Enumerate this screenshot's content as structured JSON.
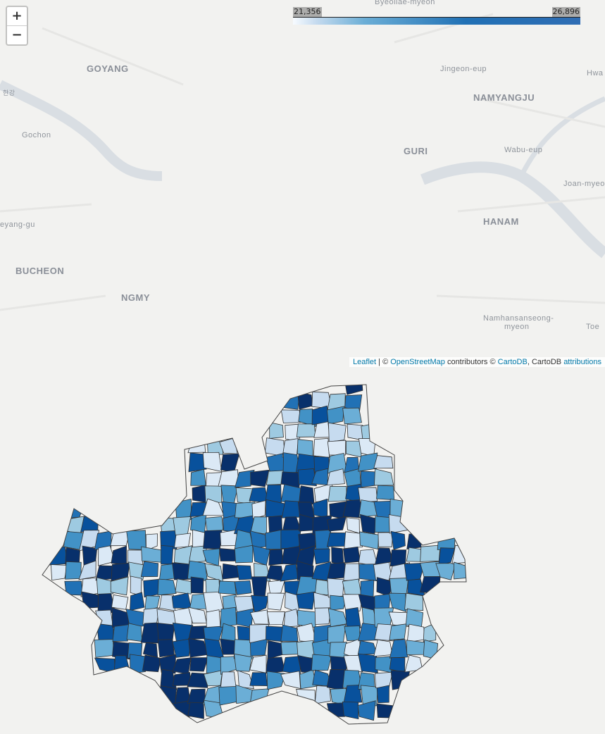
{
  "map": {
    "city_labels": [
      {
        "text": "Byeollae-myeon",
        "size": "small"
      },
      {
        "text": "GOYANG",
        "size": "big"
      },
      {
        "text": "Jingeon-eup",
        "size": "small"
      },
      {
        "text": "NAMYANGJU",
        "size": "big"
      },
      {
        "text": "Gochon",
        "size": "small"
      },
      {
        "text": "GURI",
        "size": "big"
      },
      {
        "text": "Wabu-eup",
        "size": "small"
      },
      {
        "text": "Joan-myeon",
        "size": "small"
      },
      {
        "text": "HANAM",
        "size": "big"
      },
      {
        "text": "eyang-gu",
        "size": "small"
      },
      {
        "text": "BUCHEON",
        "size": "big"
      },
      {
        "text": "NGMY",
        "size": "big"
      },
      {
        "text": "Namhansanseong-",
        "size": "small"
      },
      {
        "text": "myeon",
        "size": "small"
      },
      {
        "text": "한강",
        "size": "small"
      },
      {
        "text": "Hwa",
        "size": "small"
      },
      {
        "text": "Toe",
        "size": "small"
      }
    ],
    "colors": {
      "water": "#dfe4e8",
      "land": "#f2f2f0",
      "road": "#ffffff",
      "boundary": "#333333",
      "scale": [
        "#dbe9f6",
        "#c6dbef",
        "#9ecae1",
        "#6baed6",
        "#4292c6",
        "#2171b5",
        "#08519c",
        "#08306b"
      ]
    }
  },
  "zoom": {
    "in_label": "+",
    "out_label": "−"
  },
  "legend": {
    "min": "21,356",
    "max": "26,896"
  },
  "attribution": {
    "leaflet": "Leaflet",
    "sep1": " | © ",
    "osm": "OpenStreetMap",
    "contributors": " contributors © ",
    "cartodb": "CartoDB",
    "sep2": ", CartoDB ",
    "attributions": "attributions"
  }
}
